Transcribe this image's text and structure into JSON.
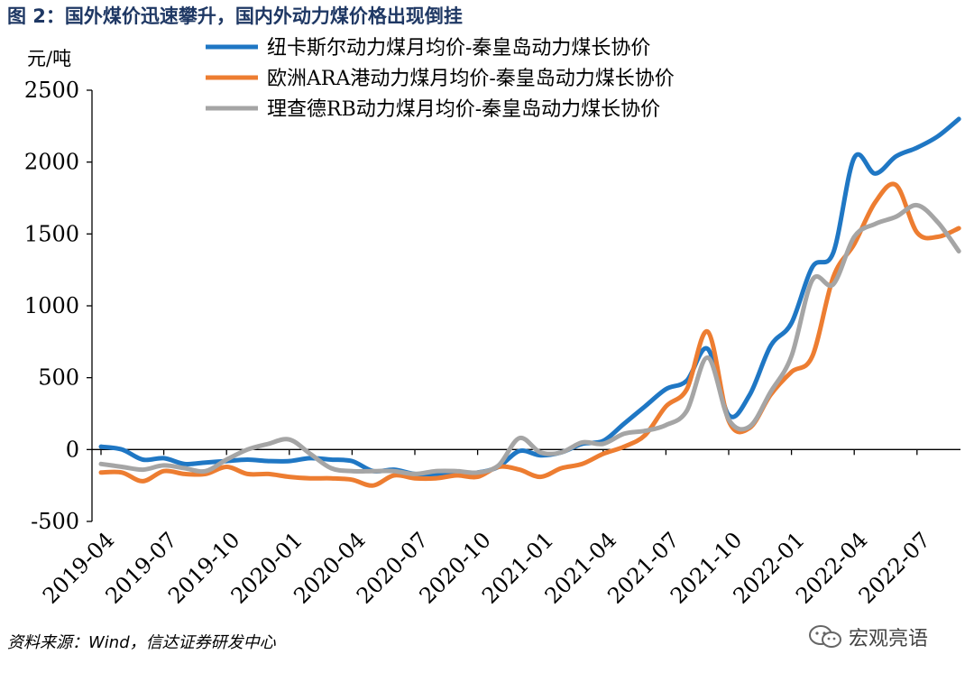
{
  "title": "图 2：国外煤价迅速攀升，国内外动力煤价格出现倒挂",
  "source": "资料来源：Wind，信达证券研发中心",
  "watermark": "宏观亮语",
  "colors": {
    "blue": "#1f77c4",
    "orange": "#ed7d31",
    "gray": "#a5a5a5",
    "title": "#1f3864"
  },
  "chart_data": {
    "type": "line",
    "ylabel": "元/吨",
    "ylim": [
      -500,
      2500
    ],
    "yticks": [
      -500,
      0,
      500,
      1000,
      1500,
      2000,
      2500
    ],
    "grid": false,
    "legend_position": "top-right",
    "xtick_labels": [
      "2019-04",
      "2019-07",
      "2019-10",
      "2020-01",
      "2020-04",
      "2020-07",
      "2020-10",
      "2021-01",
      "2021-04",
      "2021-07",
      "2021-10",
      "2022-01",
      "2022-04",
      "2022-07"
    ],
    "x": [
      "2019-04",
      "2019-05",
      "2019-06",
      "2019-07",
      "2019-08",
      "2019-09",
      "2019-10",
      "2019-11",
      "2019-12",
      "2020-01",
      "2020-02",
      "2020-03",
      "2020-04",
      "2020-05",
      "2020-06",
      "2020-07",
      "2020-08",
      "2020-09",
      "2020-10",
      "2020-11",
      "2020-12",
      "2021-01",
      "2021-02",
      "2021-03",
      "2021-04",
      "2021-05",
      "2021-06",
      "2021-07",
      "2021-08",
      "2021-09",
      "2021-10",
      "2021-11",
      "2021-12",
      "2022-01",
      "2022-02",
      "2022-03",
      "2022-04",
      "2022-05",
      "2022-06",
      "2022-07",
      "2022-08",
      "2022-09"
    ],
    "series": [
      {
        "name": "纽卡斯尔动力煤月均价-秦皇岛动力煤长协价",
        "color": "#1f77c4",
        "values": [
          20,
          0,
          -70,
          -60,
          -100,
          -90,
          -80,
          -70,
          -80,
          -80,
          -60,
          -70,
          -80,
          -150,
          -140,
          -170,
          -170,
          -170,
          -160,
          -120,
          -10,
          -40,
          -20,
          40,
          60,
          180,
          300,
          420,
          480,
          700,
          240,
          380,
          720,
          880,
          1270,
          1370,
          2030,
          1920,
          2040,
          2100,
          2180,
          2300
        ]
      },
      {
        "name": "欧洲ARA港动力煤月均价-秦皇岛动力煤长协价",
        "color": "#ed7d31",
        "values": [
          -160,
          -160,
          -220,
          -150,
          -170,
          -170,
          -120,
          -170,
          -170,
          -190,
          -200,
          -200,
          -210,
          -250,
          -180,
          -200,
          -200,
          -180,
          -190,
          -120,
          -140,
          -190,
          -130,
          -100,
          -30,
          20,
          100,
          300,
          420,
          820,
          200,
          150,
          380,
          540,
          650,
          1200,
          1430,
          1720,
          1840,
          1510,
          1480,
          1540
        ]
      },
      {
        "name": "理查德RB动力煤月均价-秦皇岛动力煤长协价",
        "color": "#a5a5a5",
        "values": [
          -100,
          -120,
          -140,
          -110,
          -130,
          -150,
          -70,
          0,
          40,
          70,
          -30,
          -130,
          -150,
          -150,
          -150,
          -170,
          -150,
          -150,
          -160,
          -110,
          80,
          -20,
          -20,
          50,
          40,
          110,
          130,
          170,
          270,
          640,
          210,
          160,
          400,
          650,
          1180,
          1150,
          1480,
          1570,
          1620,
          1700,
          1580,
          1380
        ]
      }
    ]
  }
}
